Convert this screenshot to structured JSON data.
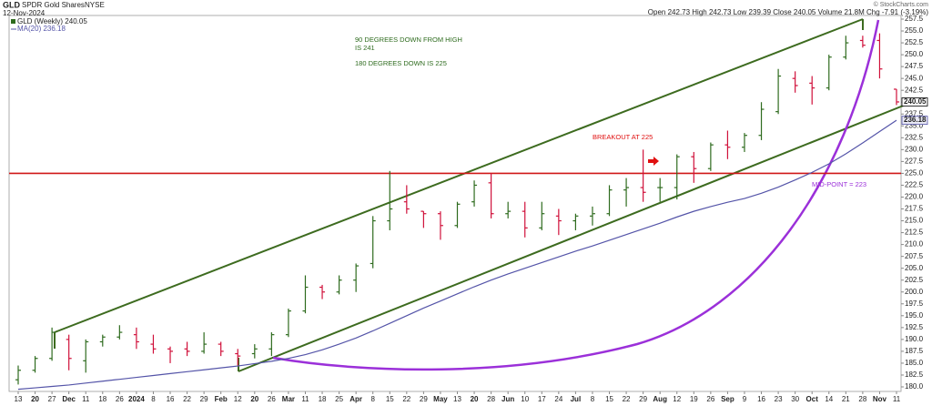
{
  "header": {
    "symbol": "GLD",
    "name": "SPDR Gold Shares",
    "exchange": "NYSE",
    "date": "12-Nov-2024",
    "quote": "Open 242.73  High 242.73  Low 239.39  Close 240.05  Volume 21.8M  Chg -7.91 (-3.19%)",
    "credit": "© StockCharts.com",
    "legend_price": "GLD (Weekly) 240.05",
    "legend_ma": "MA(20) 236.18"
  },
  "chart_data": {
    "type": "ohlc",
    "categories": [
      "13",
      "20",
      "27",
      "Dec",
      "11",
      "18",
      "26",
      "2024",
      "8",
      "16",
      "22",
      "29",
      "Feb",
      "12",
      "20",
      "26",
      "Mar",
      "11",
      "18",
      "25",
      "Apr",
      "8",
      "15",
      "22",
      "29",
      "May",
      "13",
      "20",
      "28",
      "Jun",
      "10",
      "17",
      "24",
      "Jul",
      "8",
      "15",
      "22",
      "29",
      "Aug",
      "12",
      "19",
      "26",
      "Sep",
      "9",
      "16",
      "23",
      "30",
      "Oct",
      "14",
      "21",
      "28",
      "Nov",
      "11"
    ],
    "open": [
      181.5,
      183.5,
      186,
      190,
      185.5,
      189.5,
      190.5,
      191,
      189,
      188,
      188,
      187.5,
      189,
      187,
      187,
      188,
      191,
      196,
      201,
      200,
      202.5,
      206,
      215,
      219,
      217,
      216.5,
      214,
      219,
      223,
      216.5,
      217,
      213.5,
      216,
      215,
      216,
      216.5,
      221.5,
      222,
      222,
      222,
      228.5,
      226,
      231,
      230.5,
      233,
      238,
      245,
      244,
      243,
      249.5,
      253,
      253,
      242.73
    ],
    "high": [
      184.5,
      186.5,
      192.5,
      191,
      190,
      191,
      193,
      192.5,
      191,
      188.5,
      189.5,
      191.5,
      189.5,
      188,
      189,
      191.5,
      196.5,
      203.5,
      201.5,
      203.5,
      206,
      216,
      225.5,
      222.5,
      217,
      217,
      219,
      223.5,
      225,
      219,
      219,
      219,
      217.5,
      216.5,
      218,
      222.5,
      224,
      230,
      224,
      229,
      229.5,
      231.5,
      234,
      233.5,
      240,
      247,
      246.5,
      245.5,
      250,
      254,
      254,
      254.5,
      242.73
    ],
    "low": [
      180.5,
      183,
      185.5,
      183.5,
      183,
      188.5,
      190,
      188,
      187,
      185,
      186.5,
      187,
      186.5,
      184.5,
      186,
      186.5,
      190.5,
      195.5,
      198.5,
      199.5,
      200,
      205,
      213,
      216.5,
      213.5,
      211,
      213.5,
      218,
      215.5,
      215.5,
      211.5,
      213,
      212,
      213,
      214,
      216,
      218,
      219,
      219,
      219.5,
      223,
      225.5,
      228,
      229.5,
      232,
      237.5,
      242,
      239.5,
      242.5,
      249,
      251.5,
      245,
      239.39
    ],
    "close": [
      183.5,
      186,
      191.5,
      186,
      189.5,
      190.5,
      191.5,
      189.5,
      188,
      187.5,
      187.5,
      189,
      187.5,
      186.5,
      188,
      191,
      196,
      201,
      200,
      202.5,
      205.5,
      215,
      217.5,
      217.5,
      216.5,
      214,
      218.5,
      222.5,
      216.5,
      217,
      213.5,
      216.5,
      215,
      216,
      216.5,
      221.5,
      222,
      221,
      222,
      228.5,
      226,
      231,
      230.5,
      233,
      238.5,
      245.5,
      243.5,
      243,
      249.5,
      252.5,
      252,
      247,
      240.05
    ],
    "up_color": "#2e6b1e",
    "down_color": "#d0103a",
    "ma": {
      "name": "MA(20)",
      "color": "#5454a8",
      "values": [
        179.5,
        179.8,
        180.1,
        180.4,
        180.8,
        181.2,
        181.6,
        182,
        182.4,
        182.8,
        183.2,
        183.6,
        184,
        184.4,
        184.9,
        185.4,
        186,
        186.8,
        187.8,
        189,
        190.3,
        191.8,
        193.4,
        195,
        196.6,
        198.1,
        199.6,
        201.1,
        202.5,
        203.8,
        205,
        206.2,
        207.4,
        208.6,
        209.7,
        210.9,
        212.1,
        213.3,
        214.5,
        215.8,
        217,
        218,
        218.9,
        219.7,
        220.8,
        222.1,
        223.6,
        225.2,
        227,
        229.1,
        231.4,
        233.8,
        236.18
      ]
    },
    "hline": {
      "value": 225,
      "color": "#d01818"
    },
    "price_tags": [
      240.05,
      236.18
    ],
    "ylim": [
      180,
      257.5
    ],
    "yticks": [
      {
        "value": 180,
        "label": "180.0"
      },
      182.5,
      {
        "value": 185,
        "label": "185.0"
      },
      187.5,
      {
        "value": 190,
        "label": "190.0"
      },
      192.5,
      {
        "value": 195,
        "label": "195.0"
      },
      197.5,
      {
        "value": 200,
        "label": "200.0"
      },
      202.5,
      {
        "value": 205,
        "label": "205.0"
      },
      207.5,
      {
        "value": 210,
        "label": "210.0"
      },
      212.5,
      {
        "value": 215,
        "label": "215.0"
      },
      217.5,
      {
        "value": 220,
        "label": "220.0"
      },
      222.5,
      {
        "value": 225,
        "label": "225.0"
      },
      227.5,
      {
        "value": 230,
        "label": "230.0"
      },
      232.5,
      {
        "value": 235,
        "label": "235.0"
      },
      237.5,
      {
        "value": 240,
        "label": "240.0"
      },
      242.5,
      {
        "value": 245,
        "label": "245.0"
      },
      247.5,
      {
        "value": 250,
        "label": "250.0"
      },
      252.5,
      {
        "value": 255,
        "label": "255.0"
      },
      257.5
    ],
    "annotations": [
      "90 DEGREES DOWN FROM HIGH",
      "IS 241",
      "180 DEGREES DOWN IS 225",
      "BREAKOUT AT 225",
      "MID-POINT = 223"
    ]
  }
}
